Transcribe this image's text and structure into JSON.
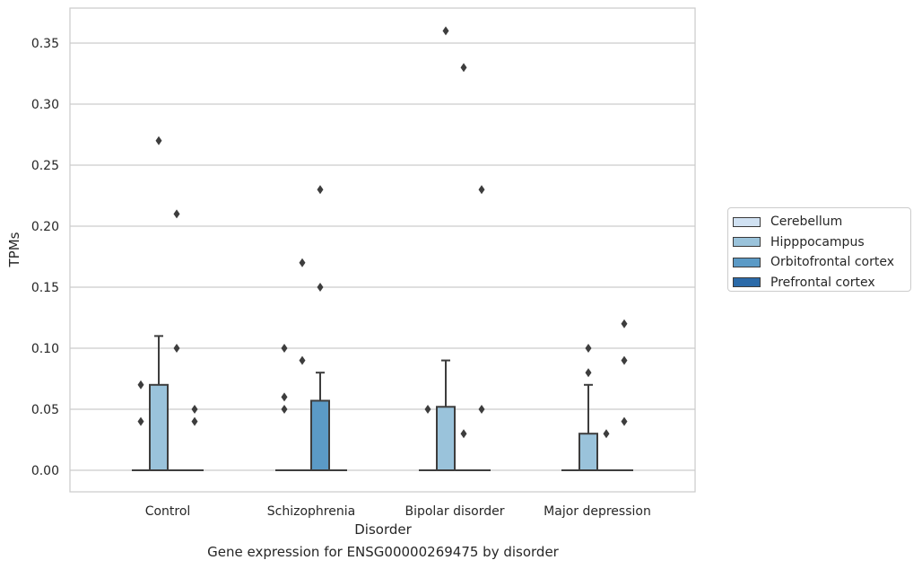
{
  "chart_data": {
    "type": "box",
    "caption": "Gene expression for ENSG00000269475 by disorder",
    "xlabel": "Disorder",
    "ylabel": "TPMs",
    "ylim": [
      -0.017,
      0.378
    ],
    "yticks": [
      "0.00",
      "0.05",
      "0.10",
      "0.15",
      "0.20",
      "0.25",
      "0.30",
      "0.35"
    ],
    "grid": true,
    "legend_position": "right",
    "categories": [
      "Control",
      "Schizophrenia",
      "Bipolar disorder",
      "Major depression"
    ],
    "series": [
      {
        "name": "Cerebellum",
        "color": "#d0e1f2",
        "boxes": [
          {
            "q1": 0,
            "median": 0,
            "q3": 0,
            "whisker_low": 0,
            "whisker_high": 0,
            "outliers": [
              0.04,
              0.07
            ]
          },
          {
            "q1": 0,
            "median": 0,
            "q3": 0,
            "whisker_low": 0,
            "whisker_high": 0,
            "outliers": [
              0.05,
              0.06,
              0.1
            ]
          },
          {
            "q1": 0,
            "median": 0,
            "q3": 0,
            "whisker_low": 0,
            "whisker_high": 0,
            "outliers": [
              0.05
            ]
          },
          {
            "q1": 0,
            "median": 0,
            "q3": 0,
            "whisker_low": 0,
            "whisker_high": 0,
            "outliers": []
          }
        ]
      },
      {
        "name": "Hipppocampus",
        "color": "#9ac3db",
        "boxes": [
          {
            "q1": 0,
            "median": 0,
            "q3": 0.07,
            "whisker_low": 0,
            "whisker_high": 0.11,
            "outliers": [
              0.27
            ]
          },
          {
            "q1": 0,
            "median": 0,
            "q3": 0,
            "whisker_low": 0,
            "whisker_high": 0,
            "outliers": [
              0.09,
              0.17
            ]
          },
          {
            "q1": 0,
            "median": 0,
            "q3": 0.052,
            "whisker_low": 0,
            "whisker_high": 0.09,
            "outliers": [
              0.36
            ]
          },
          {
            "q1": 0,
            "median": 0,
            "q3": 0.03,
            "whisker_low": 0,
            "whisker_high": 0.07,
            "outliers": [
              0.08,
              0.1
            ]
          }
        ]
      },
      {
        "name": "Orbitofrontal cortex",
        "color": "#5b9ac6",
        "boxes": [
          {
            "q1": 0,
            "median": 0,
            "q3": 0,
            "whisker_low": 0,
            "whisker_high": 0,
            "outliers": [
              0.1,
              0.21
            ]
          },
          {
            "q1": 0,
            "median": 0,
            "q3": 0.057,
            "whisker_low": 0,
            "whisker_high": 0.08,
            "outliers": [
              0.15,
              0.23
            ]
          },
          {
            "q1": 0,
            "median": 0,
            "q3": 0,
            "whisker_low": 0,
            "whisker_high": 0,
            "outliers": [
              0.03,
              0.33
            ]
          },
          {
            "q1": 0,
            "median": 0,
            "q3": 0,
            "whisker_low": 0,
            "whisker_high": 0,
            "outliers": [
              0.03
            ]
          }
        ]
      },
      {
        "name": "Prefrontal cortex",
        "color": "#2b6aa8",
        "boxes": [
          {
            "q1": 0,
            "median": 0,
            "q3": 0,
            "whisker_low": 0,
            "whisker_high": 0,
            "outliers": [
              0.04,
              0.05
            ]
          },
          {
            "q1": 0,
            "median": 0,
            "q3": 0,
            "whisker_low": 0,
            "whisker_high": 0,
            "outliers": []
          },
          {
            "q1": 0,
            "median": 0,
            "q3": 0,
            "whisker_low": 0,
            "whisker_high": 0,
            "outliers": [
              0.05,
              0.23
            ]
          },
          {
            "q1": 0,
            "median": 0,
            "q3": 0,
            "whisker_low": 0,
            "whisker_high": 0,
            "outliers": [
              0.04,
              0.09,
              0.12
            ]
          }
        ]
      }
    ]
  }
}
